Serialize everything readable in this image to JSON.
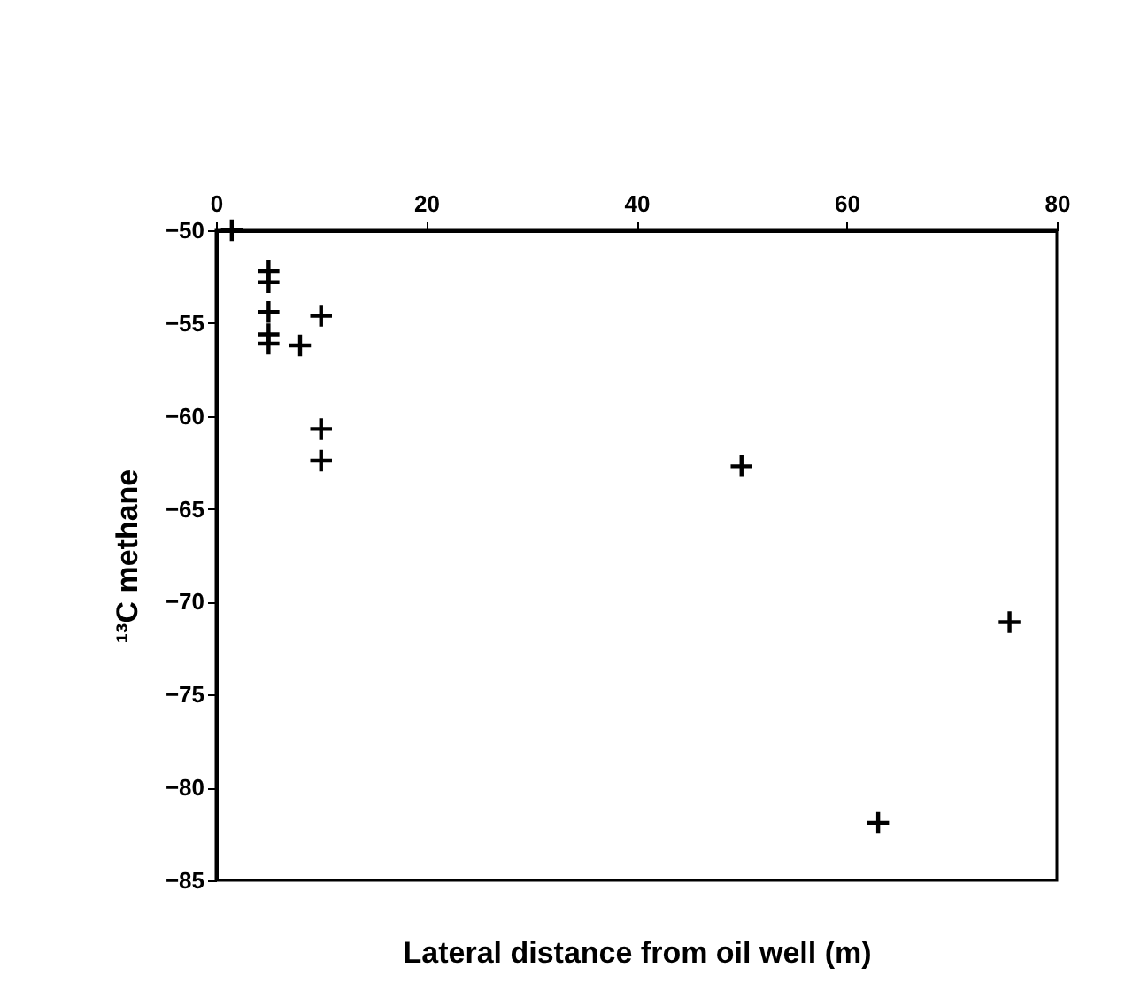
{
  "chart_data": {
    "type": "scatter",
    "xlabel": "Lateral distance from oil well (m)",
    "ylabel": "¹³C methane",
    "x": [
      1.5,
      5,
      5,
      5,
      5,
      5,
      8,
      10,
      10,
      10,
      50,
      63,
      75.5
    ],
    "values": [
      -50,
      -52.2,
      -52.8,
      -54.4,
      -55.6,
      -56.1,
      -56.2,
      -54.6,
      -60.7,
      -62.4,
      -62.7,
      -81.9,
      -71.1
    ],
    "color": "#000000",
    "marker": "cross",
    "grid": false,
    "xlim": [
      0,
      80
    ],
    "xticks": [
      0,
      20,
      40,
      60,
      80
    ],
    "ylim": [
      -85,
      -50
    ],
    "yticks": [
      -85,
      -80,
      -75,
      -70,
      -65,
      -60,
      -55,
      -50
    ]
  }
}
